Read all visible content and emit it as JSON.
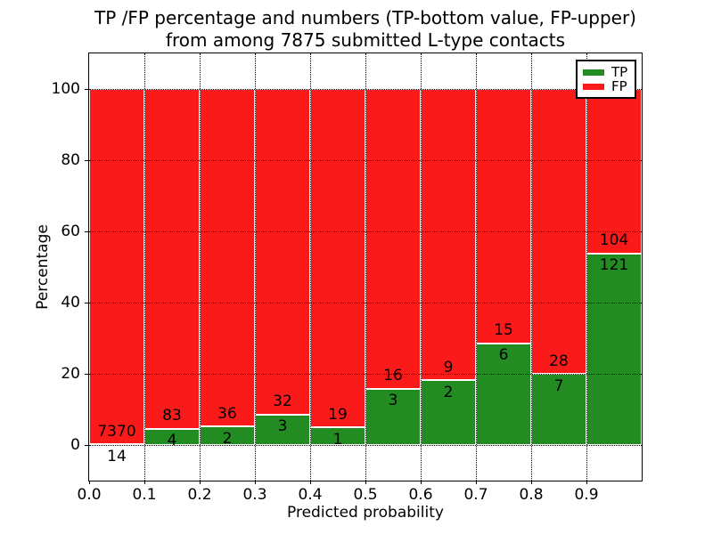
{
  "figure": {
    "title_line1": "TP /FP percentage and numbers (TP-bottom value, FP-upper)",
    "title_line2": "from among 7875 submitted L-type contacts"
  },
  "chart_data": {
    "type": "bar",
    "stacked": true,
    "title": "TP /FP percentage and numbers (TP-bottom value, FP-upper) from among 7875 submitted L-type contacts",
    "xlabel": "Predicted probability",
    "ylabel": "Percentage",
    "total_contacts": 7875,
    "bin_edges": [
      0.0,
      0.1,
      0.2,
      0.3,
      0.4,
      0.5,
      0.6,
      0.7,
      0.8,
      0.9,
      1.0
    ],
    "categories": [
      "0.0-0.1",
      "0.1-0.2",
      "0.2-0.3",
      "0.3-0.4",
      "0.4-0.5",
      "0.5-0.6",
      "0.6-0.7",
      "0.7-0.8",
      "0.8-0.9",
      "0.9-1.0"
    ],
    "series": [
      {
        "name": "TP",
        "color": "#228b22",
        "counts": [
          14,
          4,
          2,
          3,
          1,
          3,
          2,
          6,
          7,
          121
        ],
        "percentages": [
          0.19,
          4.6,
          5.26,
          8.57,
          5.0,
          15.79,
          18.18,
          28.57,
          20.0,
          53.78
        ]
      },
      {
        "name": "FP",
        "color": "#fa1a1a",
        "counts": [
          7370,
          83,
          36,
          32,
          19,
          16,
          9,
          15,
          28,
          104
        ],
        "percentages": [
          99.81,
          95.4,
          94.74,
          91.43,
          95.0,
          84.21,
          81.82,
          71.43,
          80.0,
          46.22
        ]
      }
    ],
    "xtick_labels": [
      "0.0",
      "0.1",
      "0.2",
      "0.3",
      "0.4",
      "0.5",
      "0.6",
      "0.7",
      "0.8",
      "0.9"
    ],
    "ytick_values": [
      0,
      20,
      40,
      60,
      80,
      100
    ],
    "xlim": [
      0.0,
      1.0
    ],
    "ylim": [
      -10,
      110
    ],
    "grid": {
      "visible": true,
      "style": "dotted",
      "color": "#000000"
    },
    "bar_edge_color": "#ffffff",
    "legend": {
      "position": "upper right",
      "entries": [
        {
          "label": "TP",
          "color": "#228b22"
        },
        {
          "label": "FP",
          "color": "#fa1a1a"
        }
      ]
    }
  }
}
